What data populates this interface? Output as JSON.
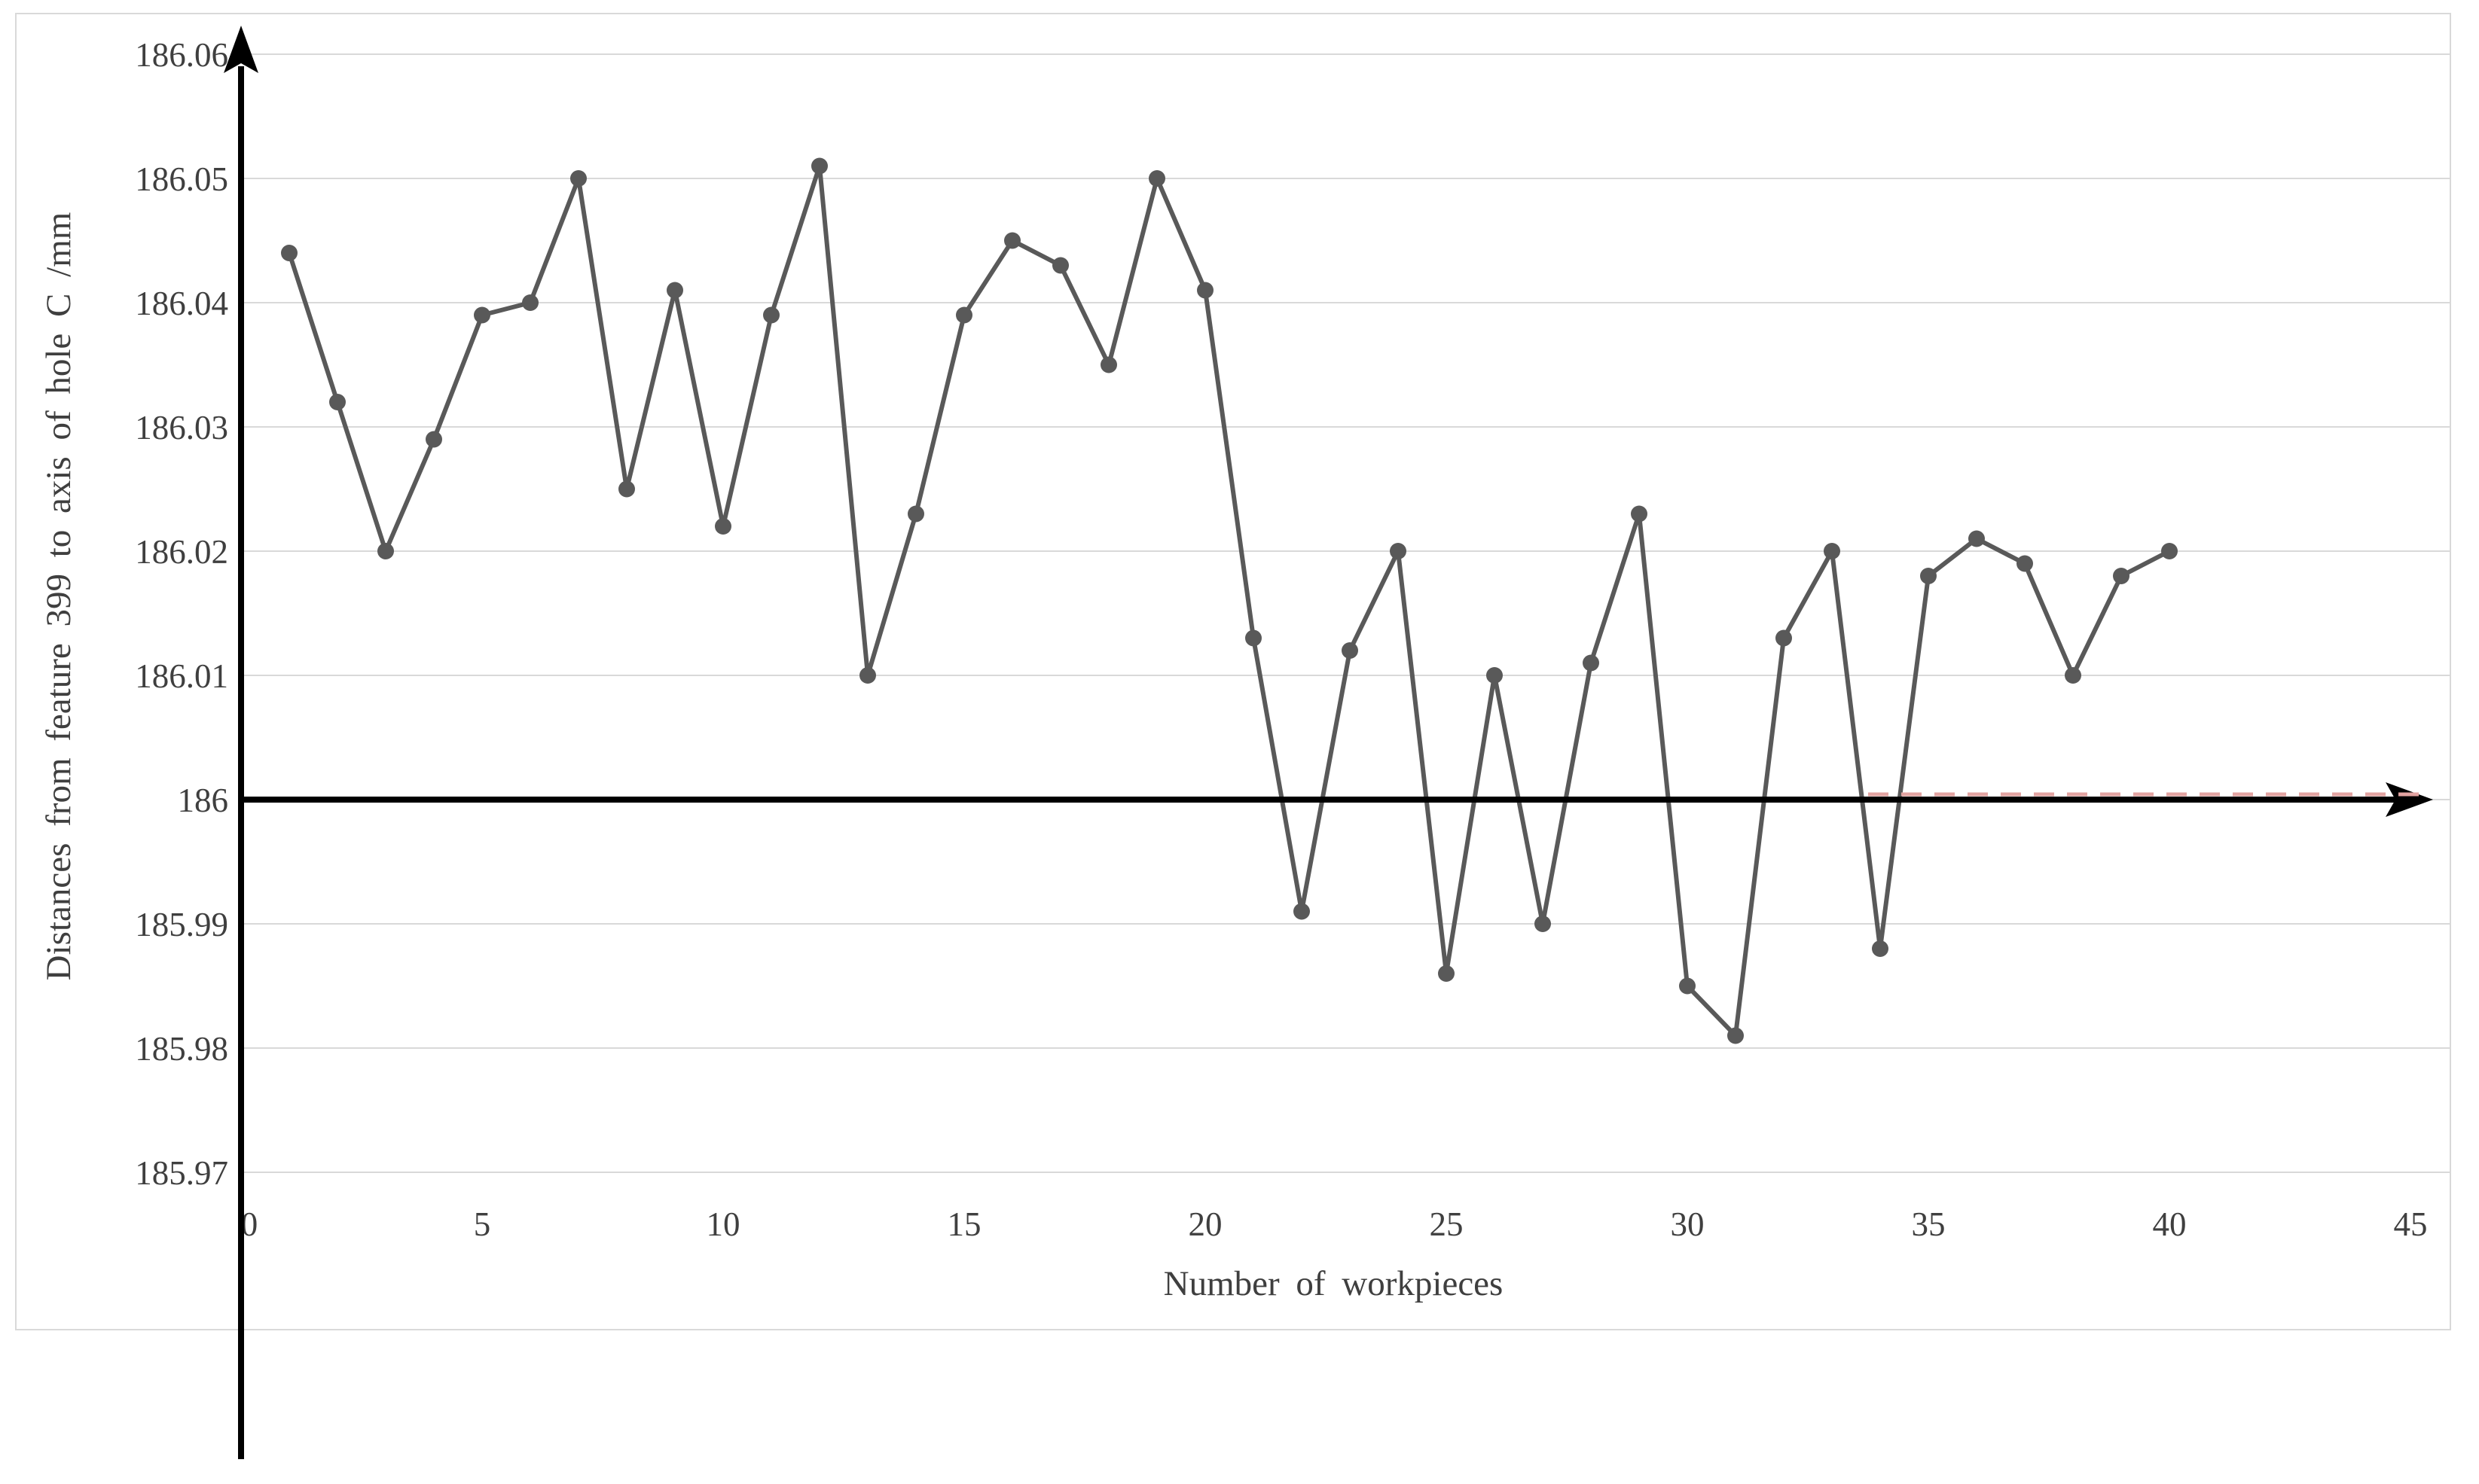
{
  "chart_data": {
    "type": "line",
    "title": "",
    "xlabel": "Number of workpieces",
    "ylabel": "Distances from feature 399 to axis of hole C /mm",
    "x": [
      1,
      2,
      3,
      4,
      5,
      6,
      7,
      8,
      9,
      10,
      11,
      12,
      13,
      14,
      15,
      16,
      17,
      18,
      19,
      20,
      21,
      22,
      23,
      24,
      25,
      26,
      27,
      28,
      29,
      30,
      31,
      32,
      33,
      34,
      35,
      36,
      37,
      38,
      39,
      40
    ],
    "values": [
      186.044,
      186.032,
      186.02,
      186.029,
      186.039,
      186.04,
      186.05,
      186.025,
      186.041,
      186.022,
      186.039,
      186.051,
      186.01,
      186.023,
      186.039,
      186.045,
      186.043,
      186.035,
      186.05,
      186.041,
      186.013,
      185.991,
      186.012,
      186.02,
      185.986,
      186.01,
      185.99,
      186.011,
      186.023,
      185.985,
      185.981,
      186.013,
      186.02,
      185.988,
      186.018,
      186.021,
      186.019,
      186.01,
      186.018,
      186.02
    ],
    "xlim": [
      0,
      45
    ],
    "ylim": [
      185.97,
      186.06
    ],
    "x_tick_labels": [
      "0",
      "5",
      "10",
      "15",
      "20",
      "25",
      "30",
      "35",
      "40",
      "45"
    ],
    "x_tick_values": [
      0,
      5,
      10,
      15,
      20,
      25,
      30,
      35,
      40,
      45
    ],
    "y_tick_labels": [
      "185.97",
      "185.98",
      "185.99",
      "186",
      "186.01",
      "186.02",
      "186.03",
      "186.04",
      "186.05",
      "186.06"
    ],
    "y_tick_values": [
      185.97,
      185.98,
      185.99,
      186,
      186.01,
      186.02,
      186.03,
      186.04,
      186.05,
      186.06
    ],
    "grid": true,
    "legend_position": "none",
    "marker": "circle",
    "reference_line": {
      "y": 186,
      "style": "dashed",
      "color": "#e2a3a1"
    },
    "colors": {
      "line": "#595959",
      "marker": "#595959",
      "grid": "#d9d9d9",
      "axis": "#000000",
      "text": "#3f3f3f",
      "border": "#d9d9d9",
      "background": "#ffffff"
    }
  }
}
